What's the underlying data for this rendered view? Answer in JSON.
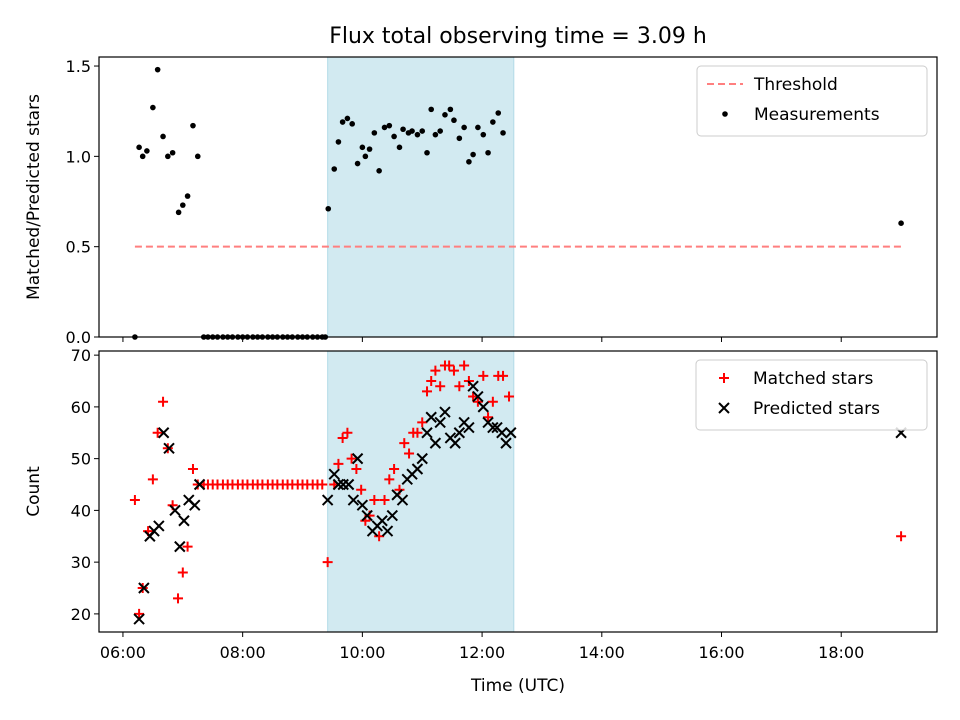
{
  "title": "Flux total observing time = 3.09 h",
  "colors": {
    "threshold": "#ff7f7f",
    "span": "#add8e6",
    "matched": "#ff0000",
    "predicted": "#000000",
    "measurement": "#000000"
  },
  "chart_data": [
    {
      "type": "scatter",
      "ylabel": "Matched/Predicted stars",
      "ylim": [
        0,
        1.55
      ],
      "yticks": [
        0.0,
        0.5,
        1.0,
        1.5
      ],
      "ytick_labels": [
        "0.0",
        "0.5",
        "1.0",
        "1.5"
      ],
      "xlim": [
        5.6,
        19.6
      ],
      "shaded_span": [
        9.42,
        12.53
      ],
      "legend": {
        "position": "top-right",
        "entries": [
          "Threshold",
          "Measurements"
        ]
      },
      "threshold": {
        "name": "Threshold",
        "y": 0.5,
        "x": [
          6.2,
          19.0
        ]
      },
      "series": [
        {
          "name": "Measurements",
          "points": [
            [
              6.2,
              0.0
            ],
            [
              6.27,
              1.05
            ],
            [
              6.33,
              1.0
            ],
            [
              6.4,
              1.03
            ],
            [
              6.5,
              1.27
            ],
            [
              6.58,
              1.48
            ],
            [
              6.67,
              1.11
            ],
            [
              6.75,
              1.0
            ],
            [
              6.83,
              1.02
            ],
            [
              6.93,
              0.69
            ],
            [
              7.0,
              0.73
            ],
            [
              7.08,
              0.78
            ],
            [
              7.17,
              1.17
            ],
            [
              7.25,
              1.0
            ],
            [
              7.35,
              0.0
            ],
            [
              7.42,
              0.0
            ],
            [
              7.5,
              0.0
            ],
            [
              7.58,
              0.0
            ],
            [
              7.67,
              0.0
            ],
            [
              7.75,
              0.0
            ],
            [
              7.83,
              0.0
            ],
            [
              7.92,
              0.0
            ],
            [
              8.0,
              0.0
            ],
            [
              8.08,
              0.0
            ],
            [
              8.17,
              0.0
            ],
            [
              8.25,
              0.0
            ],
            [
              8.33,
              0.0
            ],
            [
              8.42,
              0.0
            ],
            [
              8.5,
              0.0
            ],
            [
              8.58,
              0.0
            ],
            [
              8.67,
              0.0
            ],
            [
              8.75,
              0.0
            ],
            [
              8.83,
              0.0
            ],
            [
              8.92,
              0.0
            ],
            [
              9.0,
              0.0
            ],
            [
              9.08,
              0.0
            ],
            [
              9.17,
              0.0
            ],
            [
              9.25,
              0.0
            ],
            [
              9.33,
              0.0
            ],
            [
              9.38,
              0.0
            ],
            [
              9.43,
              0.71
            ],
            [
              9.53,
              0.93
            ],
            [
              9.6,
              1.08
            ],
            [
              9.67,
              1.19
            ],
            [
              9.75,
              1.21
            ],
            [
              9.83,
              1.18
            ],
            [
              9.92,
              0.96
            ],
            [
              10.0,
              1.05
            ],
            [
              10.05,
              1.0
            ],
            [
              10.12,
              1.04
            ],
            [
              10.2,
              1.13
            ],
            [
              10.28,
              0.92
            ],
            [
              10.37,
              1.16
            ],
            [
              10.45,
              1.17
            ],
            [
              10.53,
              1.11
            ],
            [
              10.62,
              1.05
            ],
            [
              10.68,
              1.15
            ],
            [
              10.77,
              1.13
            ],
            [
              10.83,
              1.14
            ],
            [
              10.92,
              1.12
            ],
            [
              11.0,
              1.14
            ],
            [
              11.08,
              1.02
            ],
            [
              11.15,
              1.26
            ],
            [
              11.22,
              1.12
            ],
            [
              11.3,
              1.14
            ],
            [
              11.38,
              1.23
            ],
            [
              11.47,
              1.26
            ],
            [
              11.53,
              1.2
            ],
            [
              11.62,
              1.1
            ],
            [
              11.7,
              1.16
            ],
            [
              11.78,
              0.97
            ],
            [
              11.85,
              1.01
            ],
            [
              11.93,
              1.16
            ],
            [
              12.02,
              1.12
            ],
            [
              12.1,
              1.02
            ],
            [
              12.18,
              1.19
            ],
            [
              12.27,
              1.24
            ],
            [
              12.35,
              1.13
            ],
            [
              19.0,
              0.63
            ]
          ]
        }
      ]
    },
    {
      "type": "scatter",
      "ylabel": "Count",
      "xlabel": "Time (UTC)",
      "ylim": [
        16.5,
        70.8
      ],
      "yticks": [
        20,
        30,
        40,
        50,
        60,
        70
      ],
      "ytick_labels": [
        "20",
        "30",
        "40",
        "50",
        "60",
        "70"
      ],
      "xlim": [
        5.6,
        19.6
      ],
      "xticks": [
        6,
        8,
        10,
        12,
        14,
        16,
        18
      ],
      "xtick_labels": [
        "06:00",
        "08:00",
        "10:00",
        "12:00",
        "14:00",
        "16:00",
        "18:00"
      ],
      "shaded_span": [
        9.42,
        12.53
      ],
      "legend": {
        "position": "top-right",
        "entries": [
          "Matched stars",
          "Predicted stars"
        ]
      },
      "series": [
        {
          "name": "Matched stars",
          "points": [
            [
              6.2,
              42
            ],
            [
              6.27,
              20
            ],
            [
              6.33,
              25
            ],
            [
              6.42,
              36
            ],
            [
              6.5,
              46
            ],
            [
              6.58,
              55
            ],
            [
              6.67,
              61
            ],
            [
              6.75,
              52
            ],
            [
              6.83,
              41
            ],
            [
              6.92,
              23
            ],
            [
              7.0,
              28
            ],
            [
              7.08,
              33
            ],
            [
              7.17,
              48
            ],
            [
              7.25,
              45
            ],
            [
              7.35,
              45
            ],
            [
              7.42,
              45
            ],
            [
              7.5,
              45
            ],
            [
              7.58,
              45
            ],
            [
              7.67,
              45
            ],
            [
              7.75,
              45
            ],
            [
              7.83,
              45
            ],
            [
              7.92,
              45
            ],
            [
              8.0,
              45
            ],
            [
              8.08,
              45
            ],
            [
              8.17,
              45
            ],
            [
              8.25,
              45
            ],
            [
              8.33,
              45
            ],
            [
              8.42,
              45
            ],
            [
              8.5,
              45
            ],
            [
              8.58,
              45
            ],
            [
              8.67,
              45
            ],
            [
              8.75,
              45
            ],
            [
              8.83,
              45
            ],
            [
              8.92,
              45
            ],
            [
              9.0,
              45
            ],
            [
              9.08,
              45
            ],
            [
              9.17,
              45
            ],
            [
              9.25,
              45
            ],
            [
              9.33,
              45
            ],
            [
              9.42,
              30
            ],
            [
              9.53,
              45
            ],
            [
              9.6,
              49
            ],
            [
              9.67,
              54
            ],
            [
              9.75,
              55
            ],
            [
              9.82,
              50
            ],
            [
              9.9,
              48
            ],
            [
              9.98,
              44
            ],
            [
              10.05,
              38
            ],
            [
              10.12,
              39
            ],
            [
              10.2,
              42
            ],
            [
              10.28,
              35
            ],
            [
              10.37,
              42
            ],
            [
              10.45,
              46
            ],
            [
              10.53,
              48
            ],
            [
              10.62,
              44
            ],
            [
              10.7,
              53
            ],
            [
              10.78,
              51
            ],
            [
              10.85,
              55
            ],
            [
              10.92,
              55
            ],
            [
              11.0,
              57
            ],
            [
              11.08,
              63
            ],
            [
              11.15,
              65
            ],
            [
              11.22,
              67
            ],
            [
              11.3,
              64
            ],
            [
              11.38,
              68
            ],
            [
              11.45,
              68
            ],
            [
              11.53,
              67
            ],
            [
              11.62,
              64
            ],
            [
              11.7,
              68
            ],
            [
              11.78,
              65
            ],
            [
              11.85,
              62
            ],
            [
              11.93,
              61
            ],
            [
              12.02,
              66
            ],
            [
              12.1,
              58
            ],
            [
              12.18,
              61
            ],
            [
              12.27,
              66
            ],
            [
              12.35,
              66
            ],
            [
              12.45,
              62
            ],
            [
              19.0,
              35
            ]
          ]
        },
        {
          "name": "Predicted stars",
          "points": [
            [
              6.27,
              19
            ],
            [
              6.35,
              25
            ],
            [
              6.45,
              35
            ],
            [
              6.52,
              36
            ],
            [
              6.6,
              37
            ],
            [
              6.68,
              55
            ],
            [
              6.77,
              52
            ],
            [
              6.87,
              40
            ],
            [
              6.95,
              33
            ],
            [
              7.02,
              38
            ],
            [
              7.1,
              42
            ],
            [
              7.2,
              41
            ],
            [
              7.28,
              45
            ],
            [
              9.42,
              42
            ],
            [
              9.53,
              47
            ],
            [
              9.6,
              45
            ],
            [
              9.68,
              45
            ],
            [
              9.77,
              45
            ],
            [
              9.85,
              42
            ],
            [
              9.92,
              50
            ],
            [
              10.0,
              41
            ],
            [
              10.08,
              39
            ],
            [
              10.17,
              36
            ],
            [
              10.25,
              37
            ],
            [
              10.33,
              38
            ],
            [
              10.42,
              36
            ],
            [
              10.5,
              39
            ],
            [
              10.58,
              43
            ],
            [
              10.67,
              42
            ],
            [
              10.75,
              46
            ],
            [
              10.83,
              47
            ],
            [
              10.92,
              48
            ],
            [
              11.0,
              50
            ],
            [
              11.08,
              55
            ],
            [
              11.15,
              58
            ],
            [
              11.22,
              53
            ],
            [
              11.3,
              57
            ],
            [
              11.38,
              59
            ],
            [
              11.47,
              54
            ],
            [
              11.55,
              53
            ],
            [
              11.62,
              55
            ],
            [
              11.7,
              57
            ],
            [
              11.78,
              56
            ],
            [
              11.85,
              64
            ],
            [
              11.93,
              62
            ],
            [
              12.02,
              60
            ],
            [
              12.1,
              57
            ],
            [
              12.18,
              56
            ],
            [
              12.25,
              56
            ],
            [
              12.33,
              55
            ],
            [
              12.4,
              53
            ],
            [
              12.48,
              55
            ],
            [
              19.0,
              55
            ]
          ]
        }
      ]
    }
  ]
}
